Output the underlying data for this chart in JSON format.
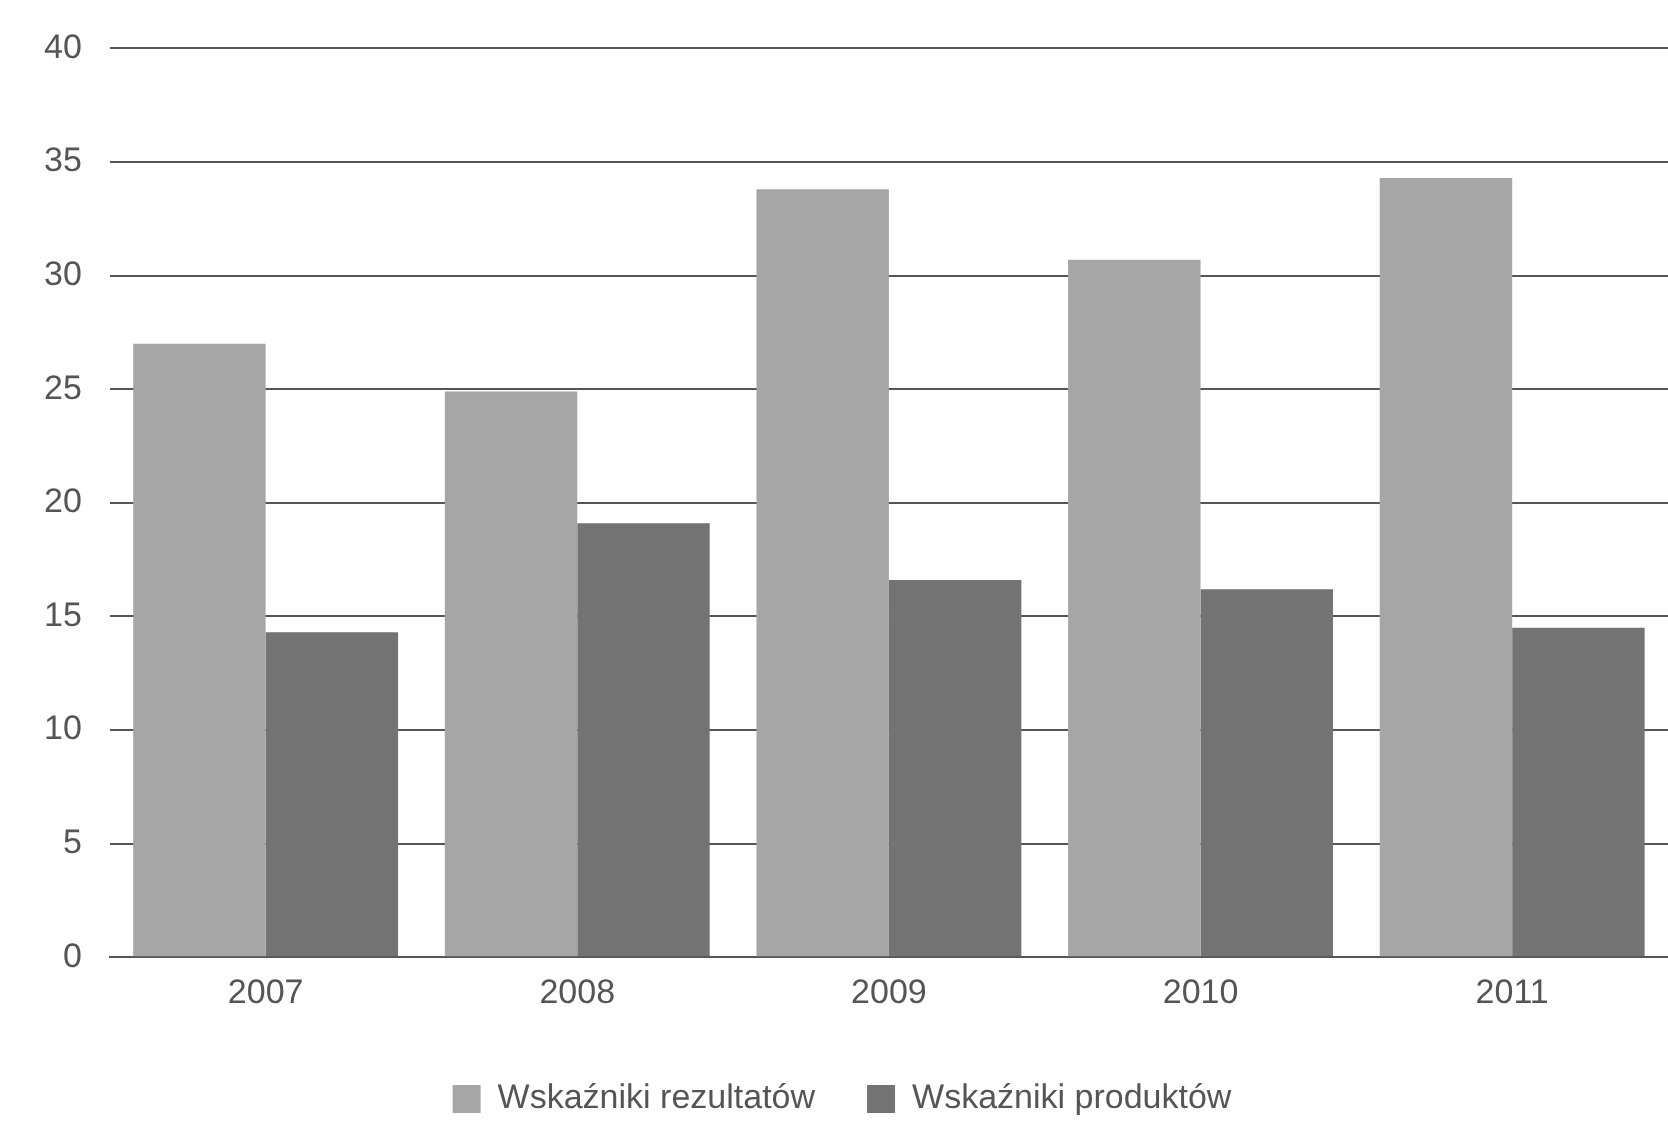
{
  "chart_data": {
    "type": "bar",
    "categories": [
      "2007",
      "2008",
      "2009",
      "2010",
      "2011"
    ],
    "series": [
      {
        "name": "Wskaźniki rezultatów",
        "color": "#a6a6a6",
        "values": [
          27.0,
          24.9,
          33.8,
          30.7,
          34.3
        ]
      },
      {
        "name": "Wskaźniki produktów",
        "color": "#737373",
        "values": [
          14.3,
          19.1,
          16.6,
          16.2,
          14.5
        ]
      }
    ],
    "ylim": [
      0,
      40
    ],
    "yticks": [
      0,
      5,
      10,
      15,
      20,
      25,
      30,
      35,
      40
    ],
    "grid": "y",
    "legend": "bottom"
  }
}
